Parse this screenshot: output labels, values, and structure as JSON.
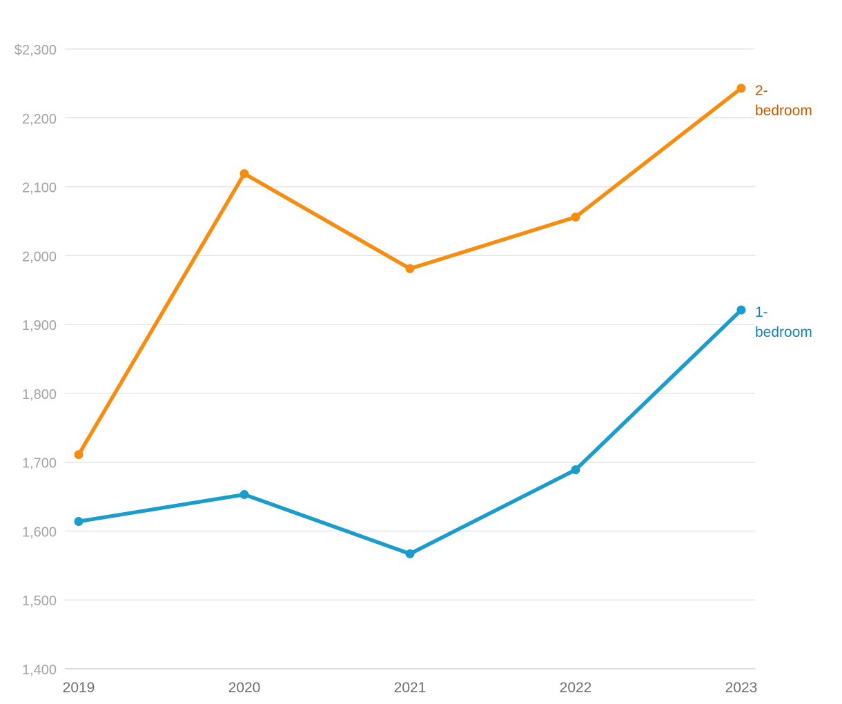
{
  "chart_data": {
    "type": "line",
    "title": "",
    "xlabel": "",
    "ylabel": "",
    "x": [
      "2019",
      "2020",
      "2021",
      "2022",
      "2023"
    ],
    "ylim": [
      1400,
      2300
    ],
    "y_ticks": [
      1400,
      1500,
      1600,
      1700,
      1800,
      1900,
      2000,
      2100,
      2200,
      2300
    ],
    "y_tick_labels": [
      "1,400",
      "1,500",
      "1,600",
      "1,700",
      "1,800",
      "1,900",
      "2,000",
      "2,100",
      "2,200",
      "$2,300"
    ],
    "grid": true,
    "legend": "none",
    "series": [
      {
        "name": "2-bedroom",
        "label_lines": [
          "2-",
          "bedroom"
        ],
        "line_color": "#f68d11",
        "label_color": "#c45b00",
        "values": [
          1711,
          2119,
          1981,
          2056,
          2243
        ]
      },
      {
        "name": "1-bedroom",
        "label_lines": [
          "1-",
          "bedroom"
        ],
        "line_color": "#1a9dcc",
        "label_color": "#1287b3",
        "values": [
          1614,
          1653,
          1567,
          1689,
          1921
        ]
      }
    ]
  }
}
